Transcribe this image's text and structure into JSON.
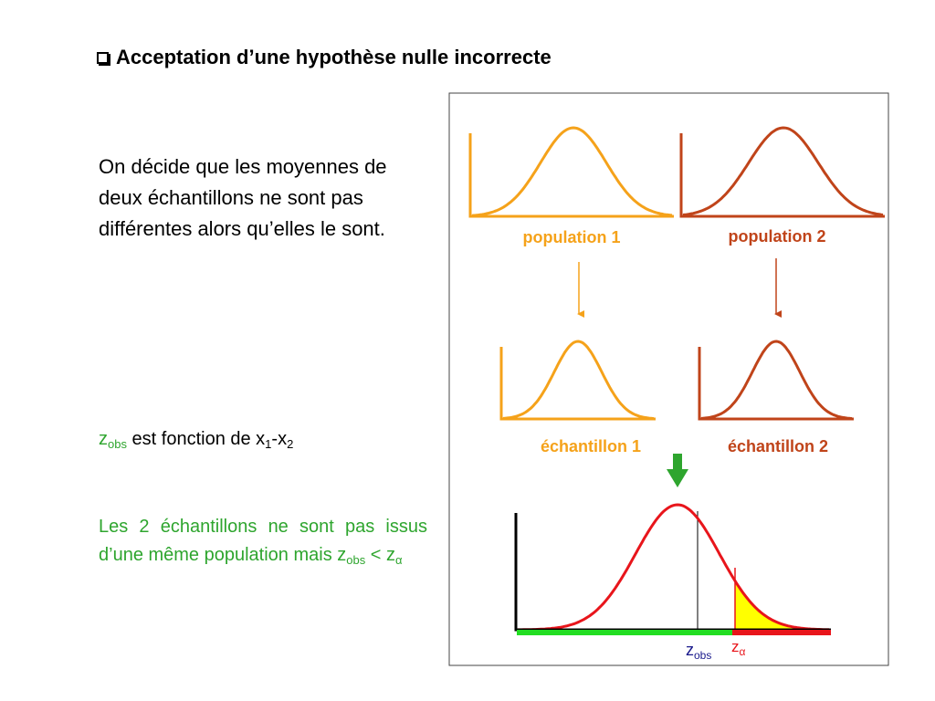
{
  "slide": {
    "title": "Acceptation d’une hypothèse nulle incorrecte",
    "intro": "On décide que les moyennes de deux échantillons ne sont pas différentes alors qu’elles le sont.",
    "zline": {
      "z": "z",
      "obs_sub": "obs",
      "text": " est fonction de x",
      "sub1": "1",
      "minus": "-x",
      "sub2": "2"
    },
    "conclusion": {
      "text": "Les 2 échantillons ne sont pas issus d’une même population mais z",
      "obs_sub": "obs",
      "lt": " < z",
      "alpha_sub": "α"
    }
  },
  "diagram": {
    "population1_label": "population 1",
    "population2_label": "population 2",
    "sample1_label": "échantillon 1",
    "sample2_label": "échantillon 2",
    "z_obs_base": "z",
    "z_obs_sub": "obs",
    "z_alpha_base": "z",
    "z_alpha_sub": "α",
    "colors": {
      "population1": "#f5a21a",
      "population2": "#c0441a",
      "test_curve": "#e8151b",
      "acceptance": "#22dd22",
      "rejection": "#e8151b",
      "alpha_area": "#ffff00",
      "arrow_green": "#2ea52e",
      "z_obs_label": "#1a1a8c"
    }
  }
}
